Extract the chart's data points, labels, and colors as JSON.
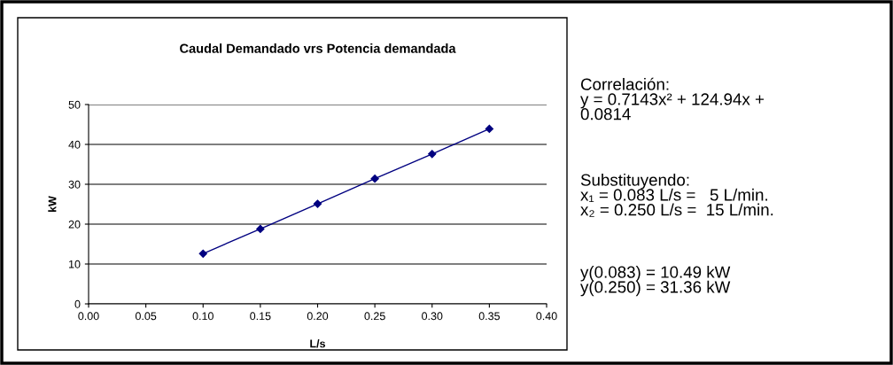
{
  "chart_data": {
    "type": "line",
    "title": "Caudal Demandado vrs Potencia demandada",
    "xlabel": "L/s",
    "ylabel": "kW",
    "x": [
      0.1,
      0.15,
      0.2,
      0.25,
      0.3,
      0.35
    ],
    "series": [
      {
        "color": "#000080",
        "values": [
          12.6,
          18.8,
          25.1,
          31.4,
          37.6,
          43.9
        ]
      }
    ],
    "xlim": [
      0.0,
      0.4
    ],
    "xticks": [
      {
        "value": 0,
        "label": "0.00"
      },
      {
        "value": 0.05,
        "label": "0.05"
      },
      {
        "value": 0.1,
        "label": "0.10"
      },
      {
        "value": 0.15,
        "label": "0.15"
      },
      {
        "value": 0.2,
        "label": "0.20"
      },
      {
        "value": 0.25,
        "label": "0.25"
      },
      {
        "value": 0.3,
        "label": "0.30"
      },
      {
        "value": 0.35,
        "label": "0.35"
      },
      {
        "value": 0.4,
        "label": "0.40"
      }
    ],
    "ylim": [
      0,
      50
    ],
    "yticks": [
      0,
      10,
      20,
      30,
      40,
      50
    ],
    "grid": "y",
    "legend": false,
    "marker": "diamond",
    "line_style": "solid",
    "annotations": [
      "Correlación:\ny = 0.7143x² + 124.94x +\n0.0814",
      "Substituyendo:\nx₁ = 0.083 L/s =   5 L/min.\nx₂ = 0.250 L/s =  15 L/min.",
      "y(0.083) = 10.49 kW\ny(0.250) = 31.36 kW"
    ]
  }
}
